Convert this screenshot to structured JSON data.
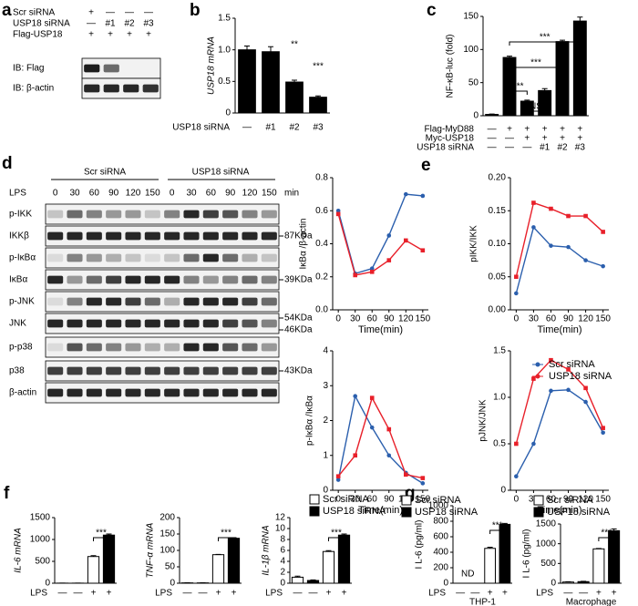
{
  "panel_labels": [
    "a",
    "b",
    "c",
    "d",
    "e",
    "f",
    "g"
  ],
  "panel_a": {
    "rows": [
      {
        "label": "Scr siRNA",
        "marks": [
          "+",
          "—",
          "—",
          "—"
        ]
      },
      {
        "label": "USP18 siRNA",
        "marks": [
          "—",
          "#1",
          "#2",
          "#3"
        ]
      },
      {
        "label": "Flag-USP18",
        "marks": [
          "+",
          "+",
          "+",
          "+"
        ]
      }
    ],
    "blots": [
      "IB: Flag",
      "IB: β-actin"
    ]
  },
  "panel_d": {
    "groups": [
      "Scr siRNA",
      "USP18 siRNA"
    ],
    "treatment": "LPS",
    "times": [
      0,
      30,
      60,
      90,
      120,
      150,
      0,
      30,
      60,
      90,
      120,
      150
    ],
    "unit": "min",
    "blots": [
      {
        "label": "p-IKK",
        "markers": []
      },
      {
        "label": "IKKβ",
        "markers": [
          "87KDa"
        ]
      },
      {
        "label": "p-IκBα",
        "markers": []
      },
      {
        "label": "IκBα",
        "markers": [
          "39KDa"
        ]
      },
      {
        "label": "p-JNK",
        "markers": []
      },
      {
        "label": "JNK",
        "markers": [
          "54KDa",
          "46KDa"
        ]
      },
      {
        "label": "p-p38",
        "markers": []
      },
      {
        "label": "p38",
        "markers": [
          "43KDa"
        ]
      },
      {
        "label": "β-actin",
        "markers": []
      }
    ]
  },
  "chart_data": [
    {
      "type": "bar",
      "ylabel": "USP18 mRNA",
      "xlabel": "USP18 siRNA",
      "categories": [
        "—",
        "#1",
        "#2",
        "#3"
      ],
      "values": [
        1.0,
        0.97,
        0.49,
        0.25
      ],
      "errors": [
        0.06,
        0.08,
        0.03,
        0.02
      ],
      "color": "#000000",
      "ylim": [
        0,
        1.5
      ],
      "yticks": [
        0,
        0.5,
        {
          "value": 1,
          "label": "1.0"
        },
        1.5
      ],
      "annotations": [
        "**",
        "***"
      ]
    },
    {
      "type": "bar",
      "ylabel": "NF-κB-luc (fold)",
      "values": [
        2,
        88,
        22,
        38,
        112,
        143
      ],
      "errors": [
        0.5,
        2,
        1.5,
        3,
        2,
        6
      ],
      "color": "#000000",
      "ylim": [
        0,
        150
      ],
      "yticks": [
        0,
        50,
        100,
        150
      ],
      "conditions": [
        {
          "name": "Flag-MyD88",
          "marks": [
            "—",
            "+",
            "+",
            "+",
            "+",
            "+"
          ]
        },
        {
          "name": "Myc-USP18",
          "marks": [
            "—",
            "—",
            "+",
            "+",
            "+",
            "+"
          ]
        },
        {
          "name": "USP18 siRNA",
          "marks": [
            "—",
            "—",
            "—",
            "#1",
            "#2",
            "#3"
          ]
        }
      ],
      "annotations": [
        "***",
        "***",
        "NS",
        "***"
      ]
    },
    {
      "type": "line",
      "ylabel": "IκBα /β-actin",
      "xlabel": "Time(min)",
      "x": [
        0,
        30,
        60,
        90,
        120,
        150
      ],
      "xlim": [
        -10,
        160
      ],
      "xticks": [
        0,
        30,
        60,
        90,
        120,
        150
      ],
      "ylim": [
        0,
        0.8
      ],
      "yticks": [
        {
          "value": 0,
          "label": "0.0"
        },
        0.2,
        0.4,
        0.6,
        0.8
      ],
      "series": [
        {
          "name": "Scr siRNA",
          "color": "#2b5fad",
          "values": [
            0.6,
            0.22,
            0.25,
            0.45,
            0.7,
            0.69
          ]
        },
        {
          "name": "USP18 siRNA",
          "color": "#e8202a",
          "values": [
            0.58,
            0.21,
            0.23,
            0.3,
            0.42,
            0.36
          ]
        }
      ]
    },
    {
      "type": "line",
      "ylabel": "pIKK/IKK",
      "xlabel": "Time(min)",
      "x": [
        0,
        30,
        60,
        90,
        120,
        150
      ],
      "xlim": [
        -10,
        160
      ],
      "xticks": [
        0,
        30,
        60,
        90,
        120,
        150
      ],
      "ylim": [
        0,
        0.2
      ],
      "yticks": [
        {
          "value": 0,
          "label": "0.00"
        },
        0.05,
        {
          "value": 0.1,
          "label": "0.10"
        },
        0.15,
        {
          "value": 0.2,
          "label": "0.20"
        }
      ],
      "series": [
        {
          "name": "Scr siRNA",
          "color": "#2b5fad",
          "values": [
            0.025,
            0.125,
            0.097,
            0.095,
            0.075,
            0.066
          ]
        },
        {
          "name": "USP18 siRNA",
          "color": "#e8202a",
          "values": [
            0.05,
            0.162,
            0.153,
            0.142,
            0.142,
            0.118
          ]
        }
      ]
    },
    {
      "type": "line",
      "ylabel": "p-IκBα /IκBα",
      "xlabel": "Time(min)",
      "x": [
        0,
        30,
        60,
        90,
        120,
        150
      ],
      "xlim": [
        -10,
        160
      ],
      "xticks": [
        0,
        30,
        60,
        90,
        120,
        150
      ],
      "ylim": [
        0,
        4
      ],
      "yticks": [
        0,
        1,
        2,
        3,
        4
      ],
      "series": [
        {
          "name": "Scr siRNA",
          "color": "#2b5fad",
          "values": [
            0.3,
            2.7,
            1.8,
            1.0,
            0.5,
            0.2
          ]
        },
        {
          "name": "USP18 siRNA",
          "color": "#e8202a",
          "values": [
            0.4,
            1.0,
            2.65,
            1.75,
            0.45,
            0.35
          ]
        }
      ]
    },
    {
      "type": "line",
      "ylabel": "pJNK/JNK",
      "xlabel": "Time(min)",
      "legend": true,
      "x": [
        0,
        30,
        60,
        90,
        120,
        150
      ],
      "xlim": [
        -10,
        160
      ],
      "xticks": [
        0,
        30,
        60,
        90,
        120,
        150
      ],
      "ylim": [
        0,
        1.5
      ],
      "yticks": [
        0,
        0.5,
        {
          "value": 1,
          "label": "1.0"
        },
        1.5
      ],
      "series": [
        {
          "name": "Scr siRNA",
          "color": "#2b5fad",
          "values": [
            0.15,
            0.5,
            1.07,
            1.08,
            0.95,
            0.62
          ]
        },
        {
          "name": "USP18 siRNA",
          "color": "#e8202a",
          "values": [
            0.5,
            1.2,
            1.4,
            1.3,
            1.1,
            0.67
          ]
        }
      ]
    },
    {
      "type": "bar",
      "ylabel": "IL-6 mRNA",
      "xlabel": "LPS",
      "x_labels": [
        "—",
        "—",
        "+",
        "+"
      ],
      "ylim": [
        0,
        1500
      ],
      "yticks": [
        0,
        500,
        1000,
        1500
      ],
      "series": [
        {
          "name": "Scr siRNA",
          "color": "#ffffff",
          "values": [
            2,
            610
          ],
          "errors": [
            1,
            20
          ]
        },
        {
          "name": "USP18 siRNA",
          "color": "#000000",
          "values": [
            2,
            1100
          ],
          "errors": [
            1,
            25
          ]
        }
      ],
      "annotations": [
        "***"
      ]
    },
    {
      "type": "bar",
      "ylabel": "TNF-α mRNA",
      "xlabel": "LPS",
      "x_labels": [
        "—",
        "—",
        "+",
        "+"
      ],
      "ylim": [
        0,
        200
      ],
      "yticks": [
        0,
        50,
        100,
        150,
        200
      ],
      "series": [
        {
          "name": "Scr siRNA",
          "color": "#ffffff",
          "values": [
            1,
            87
          ],
          "errors": [
            0.5,
            1
          ]
        },
        {
          "name": "USP18 siRNA",
          "color": "#000000",
          "values": [
            1,
            137
          ],
          "errors": [
            0.5,
            2
          ]
        }
      ],
      "annotations": [
        "***"
      ]
    },
    {
      "type": "bar",
      "ylabel": "IL-1β mRNA",
      "xlabel": "LPS",
      "x_labels": [
        "—",
        "—",
        "+",
        "+"
      ],
      "legend": true,
      "ylim": [
        0,
        12
      ],
      "yticks": [
        0,
        2,
        4,
        6,
        8,
        10,
        12
      ],
      "series": [
        {
          "name": "Scr siRNA",
          "color": "#ffffff",
          "values": [
            1.1,
            5.8
          ],
          "errors": [
            0.2,
            0.15
          ]
        },
        {
          "name": "USP18 siRNA",
          "color": "#000000",
          "values": [
            0.5,
            8.8
          ],
          "errors": [
            0.1,
            0.2
          ]
        }
      ],
      "annotations": [
        "***"
      ]
    },
    {
      "type": "bar",
      "ylabel": "I L-6 (pg/ml)",
      "xlabel": "LPS",
      "caption": "THP-1",
      "x_labels": [
        "—",
        "—",
        "+",
        "+"
      ],
      "legend": true,
      "ylim": [
        0,
        1000
      ],
      "yticks": [
        0,
        200,
        400,
        600,
        800,
        1000
      ],
      "series": [
        {
          "name": "Scr siRNA",
          "color": "#ffffff",
          "values": [
            null,
            450
          ],
          "errors": [
            null,
            15
          ]
        },
        {
          "name": "USP18 siRNA",
          "color": "#000000",
          "values": [
            null,
            760
          ],
          "errors": [
            null,
            12
          ]
        }
      ],
      "annotations": [
        "ND",
        "***"
      ]
    },
    {
      "type": "bar",
      "ylabel": "I L-6 (pg/ml)",
      "xlabel": "LPS",
      "caption": "Macrophage",
      "x_labels": [
        "—",
        "—",
        "+",
        "+"
      ],
      "legend": true,
      "ylim": [
        0,
        1500
      ],
      "yticks": [
        0,
        500,
        1000,
        1500
      ],
      "series": [
        {
          "name": "Scr siRNA",
          "color": "#ffffff",
          "values": [
            30,
            870
          ],
          "errors": [
            8,
            10
          ]
        },
        {
          "name": "USP18 siRNA",
          "color": "#000000",
          "values": [
            40,
            1330
          ],
          "errors": [
            10,
            45
          ]
        }
      ],
      "annotations": [
        "***"
      ]
    }
  ]
}
